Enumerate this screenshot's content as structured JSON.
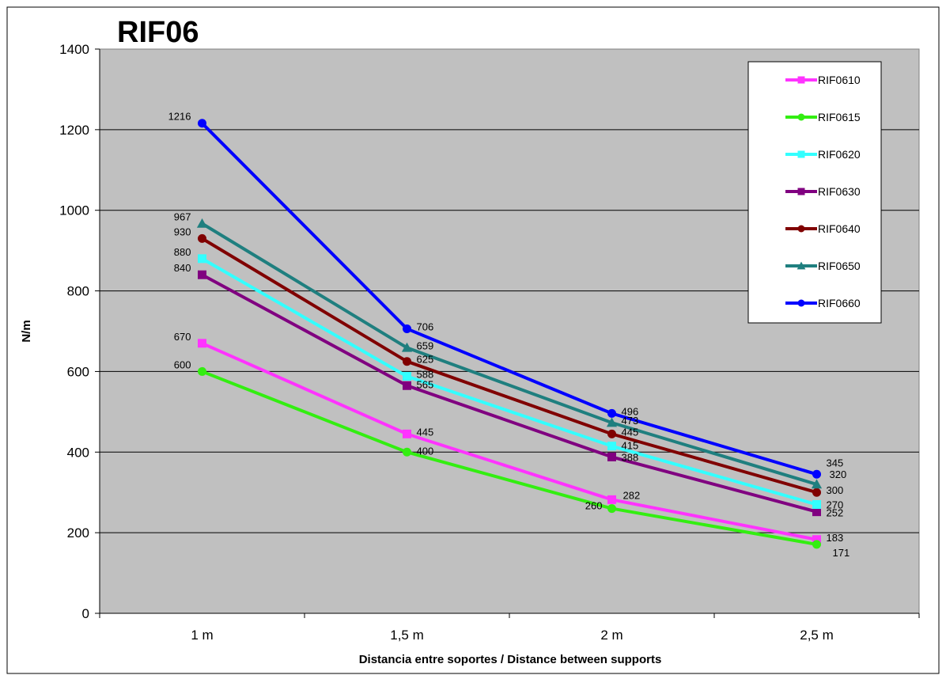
{
  "chart_data": {
    "type": "line",
    "title": "RIF06",
    "xlabel": "Distancia entre soportes / Distance between supports",
    "ylabel": "N/m",
    "categories": [
      "1 m",
      "1,5 m",
      "2 m",
      "2,5 m"
    ],
    "ylim": [
      0,
      1400
    ],
    "yticks": [
      0,
      200,
      400,
      600,
      800,
      1000,
      1200,
      1400
    ],
    "grid": true,
    "legend_position": "top-right",
    "plot_background": "#c0c0c0",
    "series": [
      {
        "name": "RIF0610",
        "values": [
          670,
          445,
          282,
          183
        ],
        "color": "#ff33ff",
        "marker": "square",
        "labels": [
          "670",
          "445",
          "282",
          "183"
        ]
      },
      {
        "name": "RIF0615",
        "values": [
          600,
          400,
          260,
          171
        ],
        "color": "#33ee11",
        "marker": "circle",
        "labels": [
          "600",
          "400",
          "260",
          "171"
        ]
      },
      {
        "name": "RIF0620",
        "values": [
          880,
          588,
          415,
          270
        ],
        "color": "#33ffff",
        "marker": "square",
        "labels": [
          "880",
          "588",
          "415",
          "270"
        ]
      },
      {
        "name": "RIF0630",
        "values": [
          840,
          565,
          388,
          252
        ],
        "color": "#800080",
        "marker": "square",
        "labels": [
          "840",
          "565",
          "388",
          "252"
        ]
      },
      {
        "name": "RIF0640",
        "values": [
          930,
          625,
          445,
          300
        ],
        "color": "#800000",
        "marker": "circle",
        "labels": [
          "930",
          "625",
          "445",
          "300"
        ]
      },
      {
        "name": "RIF0650",
        "values": [
          967,
          659,
          473,
          320
        ],
        "color": "#1f7f7f",
        "marker": "triangle",
        "labels": [
          "967",
          "659",
          "473",
          "320"
        ]
      },
      {
        "name": "RIF0660",
        "values": [
          1216,
          706,
          496,
          345
        ],
        "color": "#0000ff",
        "marker": "circle",
        "labels": [
          "1216",
          "706",
          "496",
          "345"
        ]
      }
    ]
  }
}
